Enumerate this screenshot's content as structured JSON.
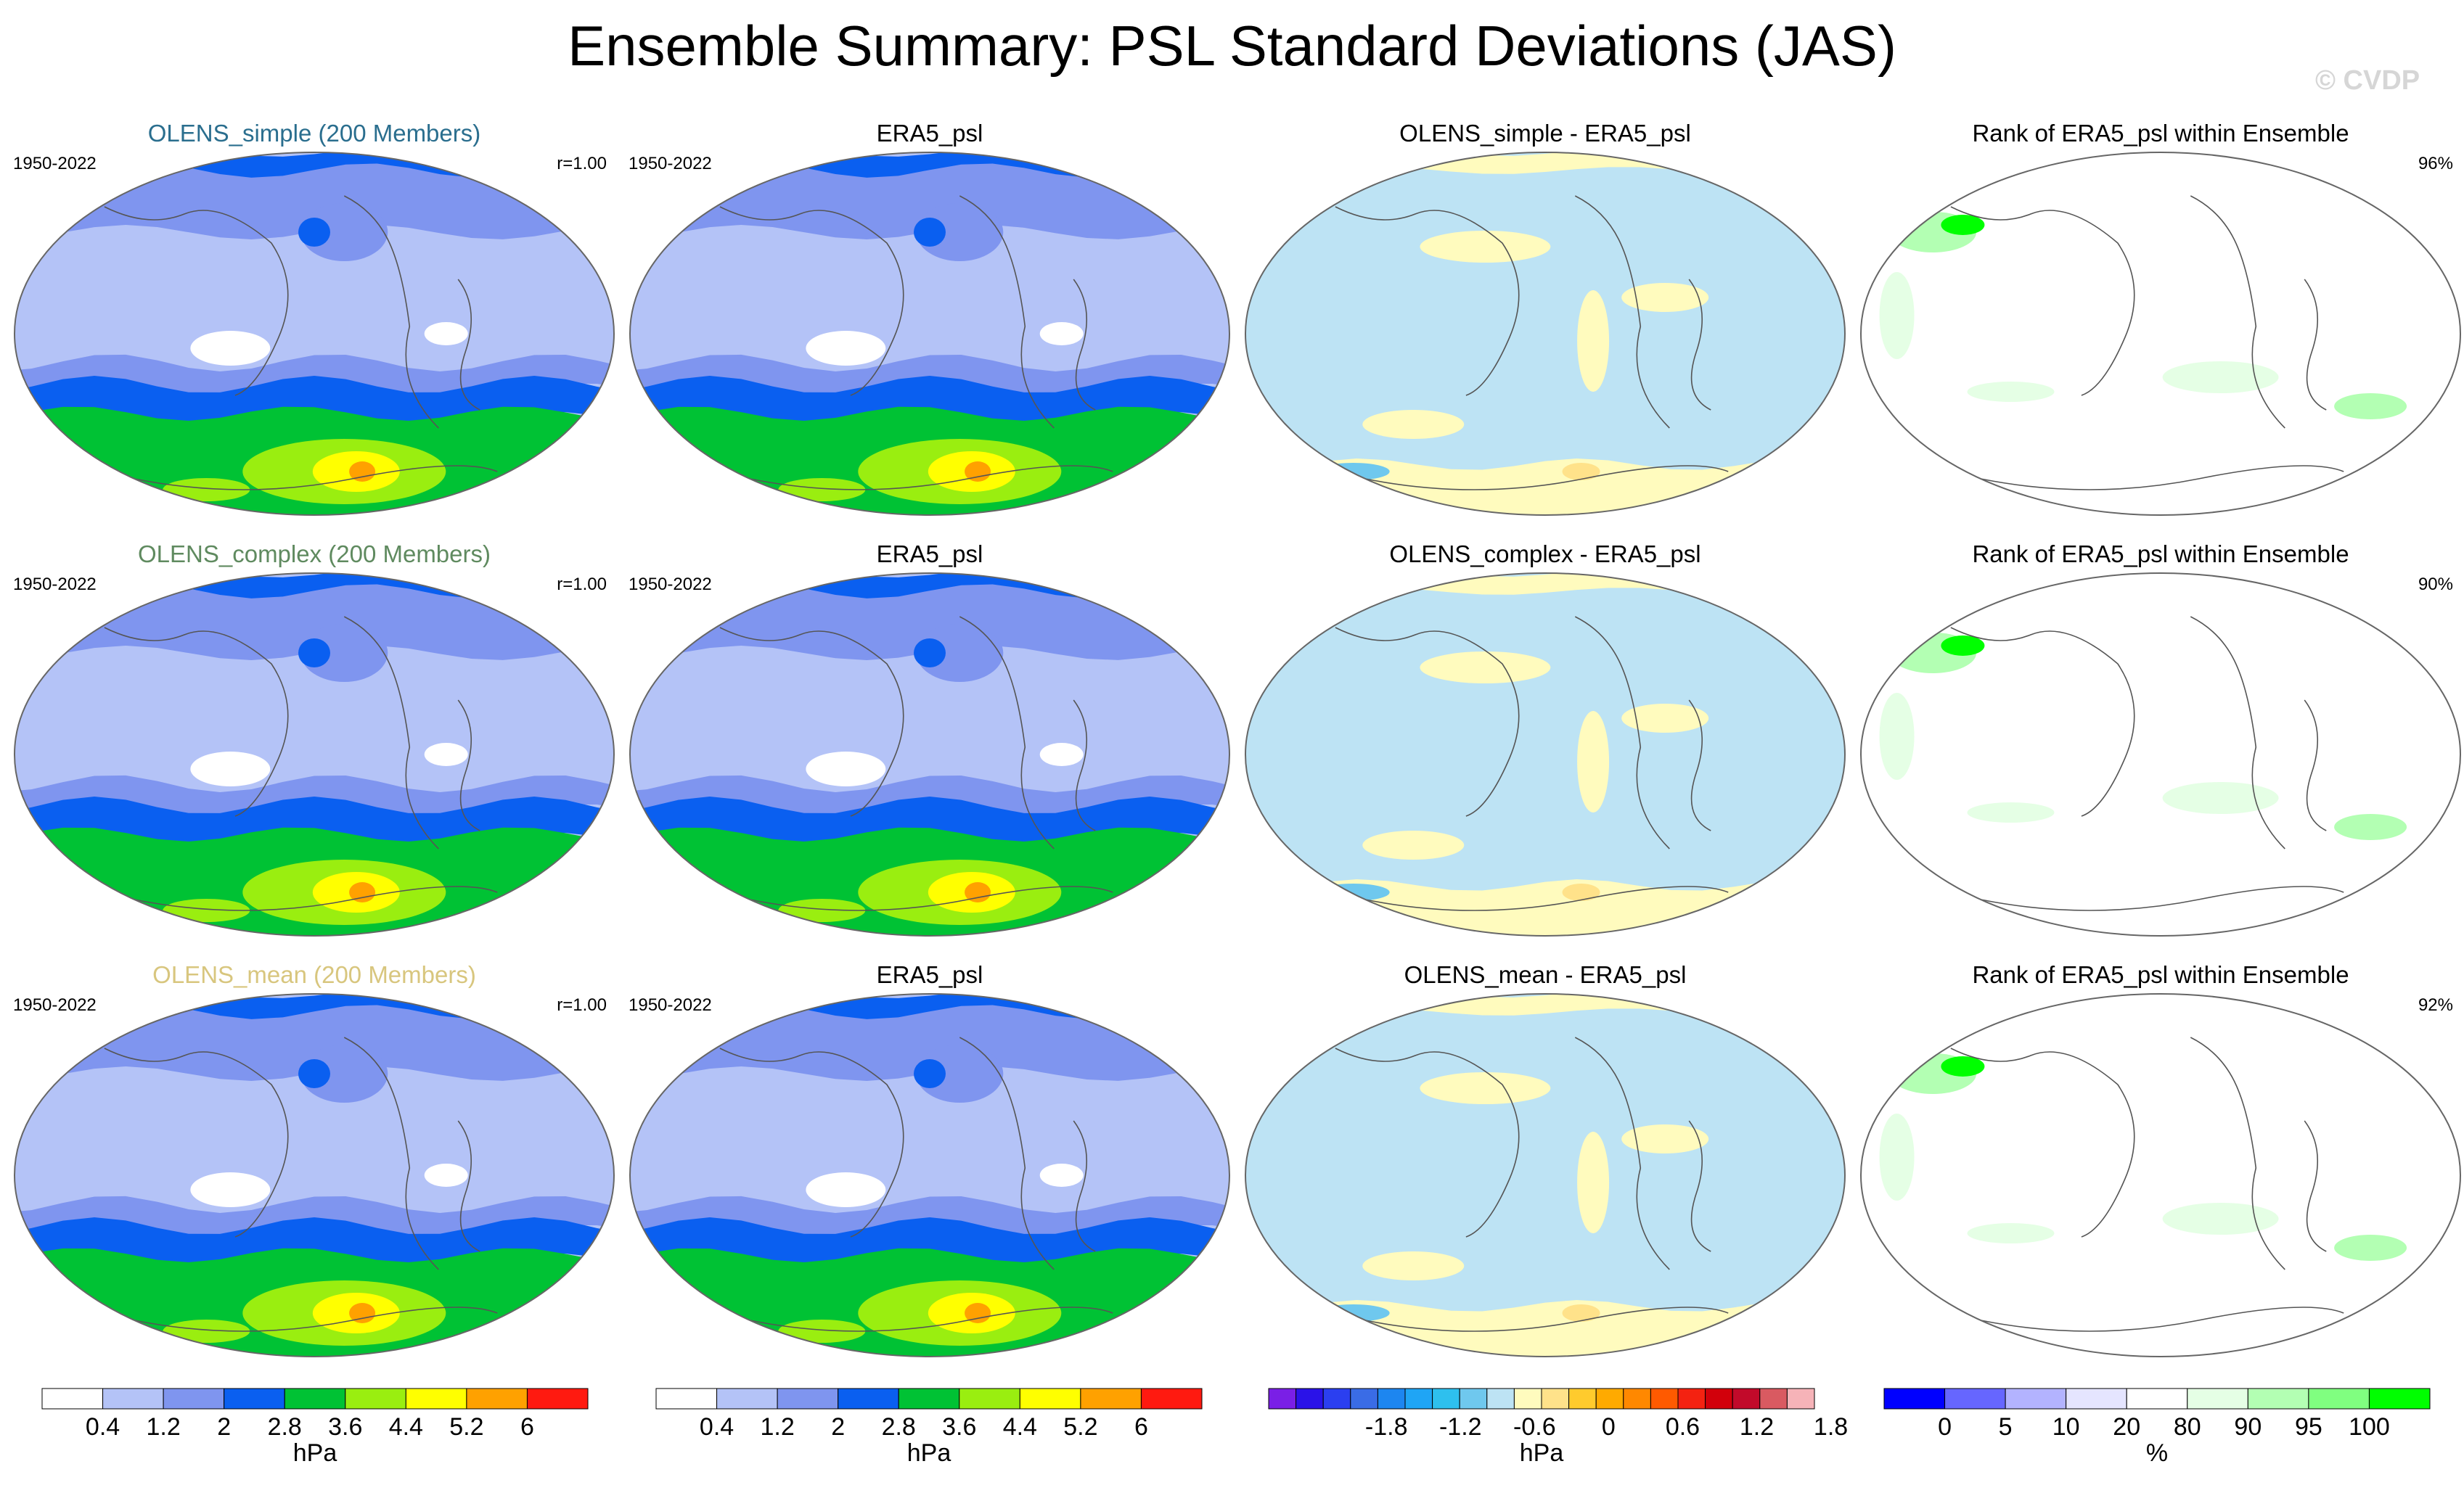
{
  "title": "Ensemble Summary: PSL Standard Deviations (JAS)",
  "watermark": "© CVDP",
  "chart_data": {
    "type": "heatmap",
    "title": "Ensemble Summary: PSL Standard Deviations (JAS)",
    "period": "1950-2022",
    "rows": [
      {
        "ensemble_title": "OLENS_simple (200 Members)",
        "ensemble_color": "#2a6e8e",
        "pattern_corr": "r=1.00",
        "obs_title": "ERA5_psl",
        "diff_title": "OLENS_simple - ERA5_psl",
        "rank_title": "Rank of ERA5_psl within Ensemble",
        "rank_pct": "96%"
      },
      {
        "ensemble_title": "OLENS_complex (200 Members)",
        "ensemble_color": "#5f8a5f",
        "pattern_corr": "r=1.00",
        "obs_title": "ERA5_psl",
        "diff_title": "OLENS_complex - ERA5_psl",
        "rank_title": "Rank of ERA5_psl within Ensemble",
        "rank_pct": "90%"
      },
      {
        "ensemble_title": "OLENS_mean (200 Members)",
        "ensemble_color": "#d8c67e",
        "pattern_corr": "r=1.00",
        "obs_title": "ERA5_psl",
        "diff_title": "OLENS_mean - ERA5_psl",
        "rank_title": "Rank of ERA5_psl within Ensemble",
        "rank_pct": "92%"
      }
    ],
    "colorbars": [
      {
        "units": "hPa",
        "colors": [
          "#ffffff",
          "#b4c3f7",
          "#7f95ef",
          "#0a5ff0",
          "#00c234",
          "#9aee10",
          "#ffff00",
          "#ffa100",
          "#ff1a10"
        ],
        "tick_labels": [
          "0.4",
          "1.2",
          "2",
          "2.8",
          "3.6",
          "4.4",
          "5.2",
          "6"
        ]
      },
      {
        "units": "hPa",
        "colors": [
          "#ffffff",
          "#b4c3f7",
          "#7f95ef",
          "#0a5ff0",
          "#00c234",
          "#9aee10",
          "#ffff00",
          "#ffa100",
          "#ff1a10"
        ],
        "tick_labels": [
          "0.4",
          "1.2",
          "2",
          "2.8",
          "3.6",
          "4.4",
          "5.2",
          "6"
        ]
      },
      {
        "units": "hPa",
        "colors": [
          "#7a1fe6",
          "#2a12e8",
          "#2b3ff0",
          "#3a6ce6",
          "#1d86f0",
          "#1fa5f5",
          "#2ec0ee",
          "#6fc8ee",
          "#bde3f4",
          "#fffbbe",
          "#ffe28a",
          "#ffcb2d",
          "#ffaa00",
          "#ff8800",
          "#ff5a00",
          "#f42211",
          "#d2000b",
          "#c20a2a",
          "#d95a61",
          "#f6b3b8"
        ],
        "tick_labels": [
          "-1.8",
          "-1.2",
          "-0.6",
          "0",
          "0.6",
          "1.2",
          "1.8"
        ]
      },
      {
        "units": "%",
        "colors": [
          "#0000ff",
          "#6666ff",
          "#b3b3ff",
          "#e5e5ff",
          "#ffffff",
          "#e5ffe5",
          "#b3ffb3",
          "#80ff80",
          "#00ff00"
        ],
        "tick_labels": [
          "0",
          "5",
          "10",
          "20",
          "80",
          "90",
          "95",
          "100"
        ]
      }
    ]
  }
}
